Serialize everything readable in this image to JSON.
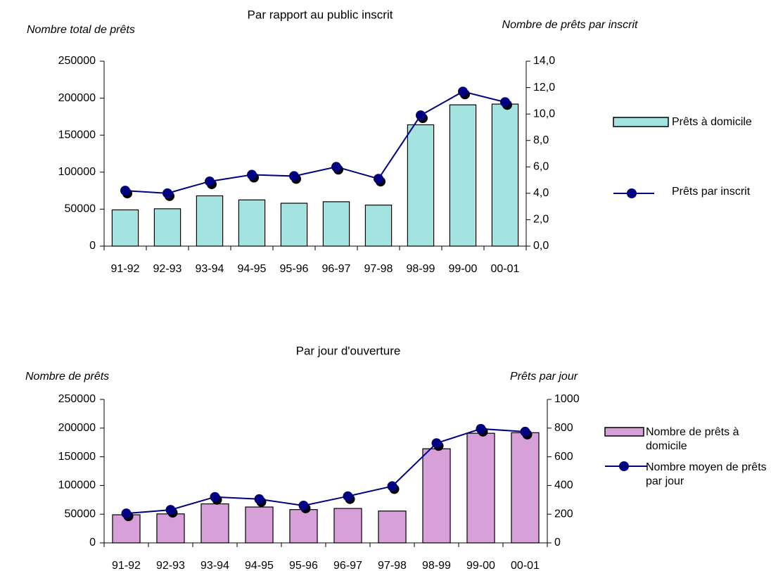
{
  "chart_data": [
    {
      "type": "bar",
      "title": "Par rapport au public inscrit",
      "y_label": "Nombre total de prêts",
      "y2_label": "Nombre de prêts par inscrit",
      "categories": [
        "91-92",
        "92-93",
        "93-94",
        "94-95",
        "95-96",
        "96-97",
        "97-98",
        "98-99",
        "99-00",
        "00-01"
      ],
      "series": [
        {
          "name": "Prêts à domicile",
          "type": "bar",
          "color": "#a3e3e0",
          "values": [
            49000,
            50500,
            68000,
            62500,
            58000,
            60000,
            55500,
            164000,
            191000,
            192000
          ]
        },
        {
          "name": "Prêts par inscrit",
          "type": "line",
          "axis": "y2",
          "color": "#000080",
          "values": [
            4.2,
            4.0,
            4.9,
            5.4,
            5.3,
            6.0,
            5.1,
            9.9,
            11.7,
            10.9
          ]
        }
      ],
      "ylim": [
        0,
        250000
      ],
      "yticks": [
        0,
        50000,
        100000,
        150000,
        200000,
        250000
      ],
      "y2lim": [
        0,
        14
      ],
      "y2ticks": [
        {
          "value": 0,
          "label": "0,0"
        },
        {
          "value": 2,
          "label": "2,0"
        },
        {
          "value": 4,
          "label": "4,0"
        },
        {
          "value": 6,
          "label": "6,0"
        },
        {
          "value": 8,
          "label": "8,0"
        },
        {
          "value": 10,
          "label": "10,0"
        },
        {
          "value": 12,
          "label": "12,0"
        },
        {
          "value": 14,
          "label": "14,0"
        }
      ],
      "legend": "right"
    },
    {
      "type": "bar",
      "title": "Par jour d'ouverture",
      "y_label": "Nombre de prêts",
      "y2_label": "Prêts par jour",
      "categories": [
        "91-92",
        "92-93",
        "93-94",
        "94-95",
        "95-96",
        "96-97",
        "97-98",
        "98-99",
        "99-00",
        "00-01"
      ],
      "series": [
        {
          "name": "Nombre de prêts à domicile",
          "type": "bar",
          "color": "#d8a0d8",
          "values": [
            49000,
            50500,
            68000,
            62500,
            58000,
            60000,
            55500,
            164000,
            191000,
            192000
          ]
        },
        {
          "name": "Nombre moyen de prêts par jour",
          "type": "line",
          "axis": "y2",
          "color": "#000080",
          "values": [
            205,
            230,
            320,
            305,
            260,
            325,
            395,
            695,
            795,
            775
          ]
        }
      ],
      "ylim": [
        0,
        250000
      ],
      "yticks": [
        0,
        50000,
        100000,
        150000,
        200000,
        250000
      ],
      "y2lim": [
        0,
        1000
      ],
      "y2ticks": [
        0,
        200,
        400,
        600,
        800,
        1000
      ],
      "legend": "right"
    }
  ]
}
